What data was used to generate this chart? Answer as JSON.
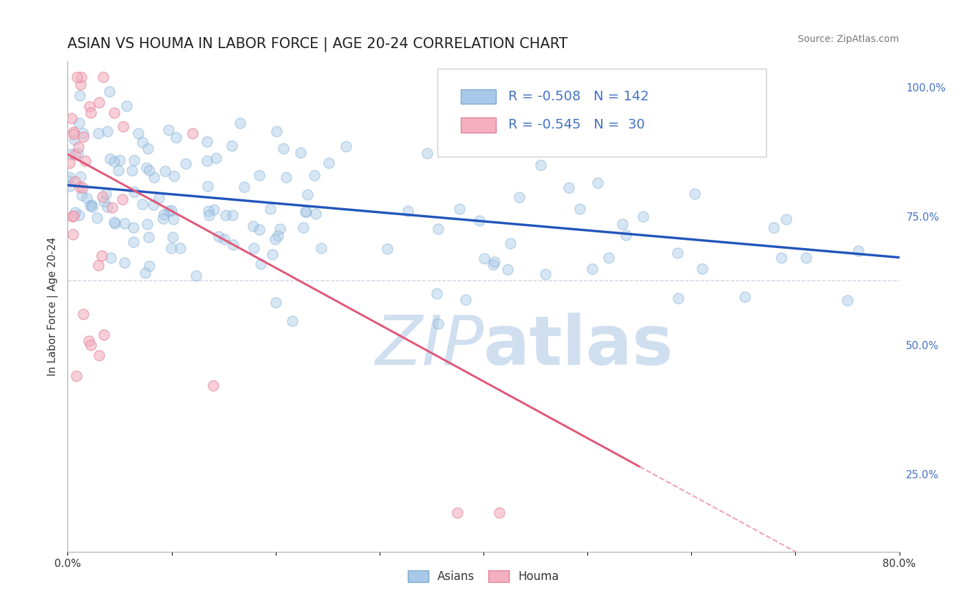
{
  "title": "ASIAN VS HOUMA IN LABOR FORCE | AGE 20-24 CORRELATION CHART",
  "source_text": "Source: ZipAtlas.com",
  "ylabel": "In Labor Force | Age 20-24",
  "xlim": [
    0.0,
    0.8
  ],
  "ylim": [
    0.1,
    1.05
  ],
  "xticks": [
    0.0,
    0.1,
    0.2,
    0.3,
    0.4,
    0.5,
    0.6,
    0.7,
    0.8
  ],
  "xticklabels": [
    "0.0%",
    "",
    "",
    "",
    "",
    "",
    "",
    "",
    "80.0%"
  ],
  "yticks_right": [
    0.25,
    0.5,
    0.75,
    1.0
  ],
  "ytick_right_labels": [
    "25.0%",
    "50.0%",
    "75.0%",
    "100.0%"
  ],
  "asian_color": "#a8c8e8",
  "asian_edge_color": "#7aaad0",
  "asian_line_color": "#2255bb",
  "houma_color": "#f4b0c0",
  "houma_edge_color": "#e08098",
  "houma_line_color": "#e05878",
  "houma_dash_color": "#f0a0b8",
  "watermark_color": "#d0dff0",
  "watermark_text": "ZIPatlas",
  "asian_R": -0.508,
  "asian_N": 142,
  "houma_R": -0.545,
  "houma_N": 30,
  "asian_intercept": 0.81,
  "asian_slope": -0.175,
  "houma_intercept": 0.87,
  "houma_slope": -1.1,
  "houma_line_end_x": 0.55,
  "ref_line_y": 0.625,
  "ref_line_color": "#c8d4e4",
  "background_color": "#ffffff",
  "title_fontsize": 15,
  "axis_label_fontsize": 11,
  "tick_fontsize": 11,
  "source_fontsize": 10,
  "dot_size": 120,
  "dot_alpha": 0.45,
  "dot_linewidth": 1.0
}
